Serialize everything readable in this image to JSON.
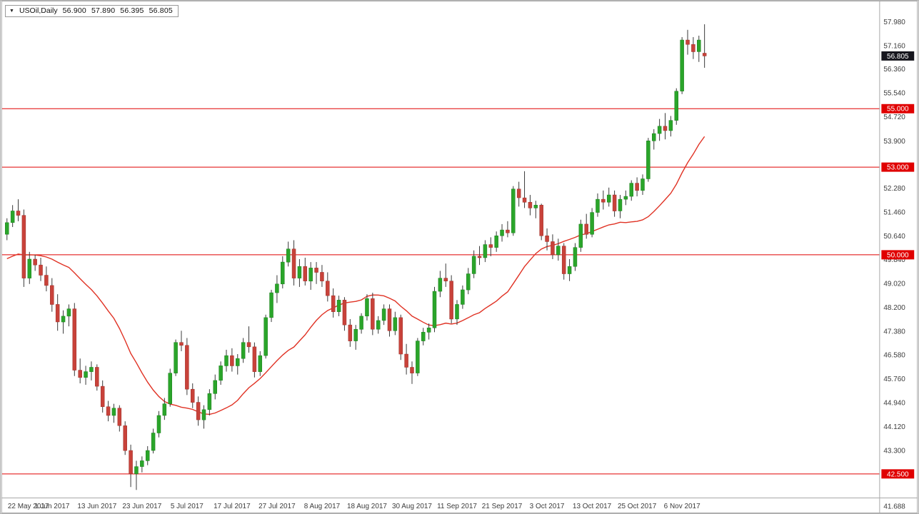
{
  "quote": {
    "dropdown_icon": "▼",
    "symbol_timeframe": "USOil,Daily",
    "open": "56.900",
    "high": "57.890",
    "low": "56.395",
    "close": "56.805"
  },
  "colors": {
    "up_body": "#2aa52a",
    "up_border": "#1d7f1d",
    "down_body": "#c8423a",
    "down_border": "#9e2f29",
    "wick": "#3a3a3a",
    "ma_line": "#e03224",
    "hline": "#e00000",
    "hline_label_bg": "#e00000",
    "hline_label_text": "#ffffff",
    "current_label_bg": "#16161e",
    "current_label_text": "#ffffff",
    "axis_text": "#3c3c3c",
    "frame": "#a8a8a8",
    "background": "#ffffff"
  },
  "chart_data": {
    "type": "candlestick",
    "title": "USOil, Daily",
    "symbol": "USOil",
    "timeframe": "Daily",
    "grid": "off",
    "legend": "none",
    "price_axis": {
      "scale_min": 41.688,
      "scale_max": 58.55,
      "ticks": [
        "57.980",
        "57.160",
        "56.360",
        "55.540",
        "54.720",
        "53.900",
        "52.280",
        "51.460",
        "50.640",
        "49.840",
        "49.020",
        "48.200",
        "47.380",
        "46.580",
        "45.760",
        "44.940",
        "44.120",
        "43.300",
        "41.688"
      ]
    },
    "time_axis": {
      "labels": [
        {
          "index": 0,
          "text": "22 May 2017"
        },
        {
          "index": 8,
          "text": "1 Jun 2017"
        },
        {
          "index": 16,
          "text": "13 Jun 2017"
        },
        {
          "index": 24,
          "text": "23 Jun 2017"
        },
        {
          "index": 32,
          "text": "5 Jul 2017"
        },
        {
          "index": 40,
          "text": "17 Jul 2017"
        },
        {
          "index": 48,
          "text": "27 Jul 2017"
        },
        {
          "index": 56,
          "text": "8 Aug 2017"
        },
        {
          "index": 64,
          "text": "18 Aug 2017"
        },
        {
          "index": 72,
          "text": "30 Aug 2017"
        },
        {
          "index": 80,
          "text": "11 Sep 2017"
        },
        {
          "index": 88,
          "text": "21 Sep 2017"
        },
        {
          "index": 96,
          "text": "3 Oct 2017"
        },
        {
          "index": 104,
          "text": "13 Oct 2017"
        },
        {
          "index": 112,
          "text": "25 Oct 2017"
        },
        {
          "index": 120,
          "text": "6 Nov 2017"
        }
      ]
    },
    "horizontal_levels": [
      {
        "value": 55.0,
        "text": "55.000"
      },
      {
        "value": 53.0,
        "text": "53.000"
      },
      {
        "value": 50.0,
        "text": "50.000"
      },
      {
        "value": 42.5,
        "text": "42.500"
      }
    ],
    "current_price": {
      "value": 56.805,
      "text": "56.805"
    },
    "ma": {
      "period": 20,
      "prehistory_pad": 49.8
    },
    "candles_format": [
      "open",
      "high",
      "low",
      "close"
    ],
    "candles": [
      [
        50.7,
        51.25,
        50.5,
        51.1
      ],
      [
        51.1,
        51.7,
        50.95,
        51.5
      ],
      [
        51.5,
        51.9,
        51.15,
        51.35
      ],
      [
        51.35,
        51.55,
        48.9,
        49.2
      ],
      [
        49.2,
        50.1,
        49.0,
        49.85
      ],
      [
        49.85,
        50.0,
        49.45,
        49.65
      ],
      [
        49.65,
        49.9,
        49.1,
        49.3
      ],
      [
        49.3,
        49.6,
        48.75,
        48.95
      ],
      [
        48.95,
        49.2,
        48.05,
        48.3
      ],
      [
        48.3,
        48.65,
        47.4,
        47.7
      ],
      [
        47.7,
        48.1,
        47.3,
        47.9
      ],
      [
        47.9,
        48.3,
        47.55,
        48.15
      ],
      [
        48.15,
        48.35,
        45.85,
        46.05
      ],
      [
        46.05,
        46.45,
        45.6,
        45.8
      ],
      [
        45.8,
        46.2,
        45.55,
        46.0
      ],
      [
        46.0,
        46.35,
        45.7,
        46.15
      ],
      [
        46.15,
        46.25,
        45.35,
        45.5
      ],
      [
        45.5,
        45.7,
        44.6,
        44.8
      ],
      [
        44.8,
        45.0,
        44.3,
        44.5
      ],
      [
        44.5,
        44.9,
        44.25,
        44.75
      ],
      [
        44.75,
        44.85,
        43.95,
        44.15
      ],
      [
        44.15,
        44.3,
        43.15,
        43.3
      ],
      [
        43.3,
        43.5,
        42.05,
        42.5
      ],
      [
        42.5,
        42.95,
        41.95,
        42.75
      ],
      [
        42.75,
        43.1,
        42.55,
        42.95
      ],
      [
        42.95,
        43.45,
        42.8,
        43.3
      ],
      [
        43.3,
        44.05,
        43.2,
        43.9
      ],
      [
        43.9,
        44.65,
        43.75,
        44.5
      ],
      [
        44.5,
        45.1,
        44.35,
        44.9
      ],
      [
        44.9,
        46.1,
        44.8,
        45.95
      ],
      [
        45.95,
        47.1,
        45.85,
        47.0
      ],
      [
        47.0,
        47.4,
        46.7,
        46.9
      ],
      [
        46.9,
        47.15,
        45.2,
        45.4
      ],
      [
        45.4,
        45.6,
        44.75,
        44.95
      ],
      [
        44.95,
        45.15,
        44.15,
        44.35
      ],
      [
        44.35,
        44.85,
        44.05,
        44.7
      ],
      [
        44.7,
        45.4,
        44.5,
        45.25
      ],
      [
        45.25,
        45.9,
        45.05,
        45.7
      ],
      [
        45.7,
        46.35,
        45.55,
        46.2
      ],
      [
        46.2,
        46.75,
        46.0,
        46.55
      ],
      [
        46.55,
        46.8,
        46.0,
        46.2
      ],
      [
        46.2,
        46.6,
        45.9,
        46.45
      ],
      [
        46.45,
        47.15,
        46.3,
        47.0
      ],
      [
        47.0,
        47.55,
        46.65,
        46.85
      ],
      [
        46.85,
        47.0,
        45.8,
        46.0
      ],
      [
        46.0,
        46.7,
        45.85,
        46.55
      ],
      [
        46.55,
        47.95,
        46.45,
        47.85
      ],
      [
        47.85,
        48.8,
        47.7,
        48.7
      ],
      [
        48.7,
        49.3,
        48.35,
        49.0
      ],
      [
        49.0,
        49.95,
        48.85,
        49.75
      ],
      [
        49.75,
        50.45,
        49.6,
        50.2
      ],
      [
        50.2,
        50.5,
        48.95,
        49.2
      ],
      [
        49.2,
        49.85,
        48.9,
        49.6
      ],
      [
        49.6,
        49.9,
        48.95,
        49.1
      ],
      [
        49.1,
        49.75,
        48.8,
        49.55
      ],
      [
        49.55,
        49.75,
        49.0,
        49.4
      ],
      [
        49.4,
        49.65,
        48.9,
        49.1
      ],
      [
        49.1,
        49.4,
        48.4,
        48.6
      ],
      [
        48.6,
        48.85,
        47.85,
        48.05
      ],
      [
        48.05,
        48.6,
        47.9,
        48.45
      ],
      [
        48.45,
        48.55,
        47.4,
        47.6
      ],
      [
        47.6,
        47.8,
        46.85,
        47.05
      ],
      [
        47.05,
        47.6,
        46.75,
        47.45
      ],
      [
        47.45,
        48.0,
        47.3,
        47.9
      ],
      [
        47.9,
        48.65,
        47.75,
        48.5
      ],
      [
        48.5,
        48.7,
        47.25,
        47.45
      ],
      [
        47.45,
        47.9,
        47.3,
        47.75
      ],
      [
        47.75,
        48.3,
        47.6,
        48.15
      ],
      [
        48.15,
        48.3,
        47.2,
        47.4
      ],
      [
        47.4,
        48.05,
        47.25,
        47.85
      ],
      [
        47.85,
        47.95,
        46.4,
        46.6
      ],
      [
        46.6,
        46.95,
        45.9,
        46.15
      ],
      [
        46.15,
        46.35,
        45.58,
        45.95
      ],
      [
        45.95,
        47.15,
        45.85,
        47.05
      ],
      [
        47.05,
        47.5,
        46.9,
        47.35
      ],
      [
        47.35,
        47.65,
        47.1,
        47.5
      ],
      [
        47.5,
        48.9,
        47.35,
        48.75
      ],
      [
        48.75,
        49.45,
        48.55,
        49.2
      ],
      [
        49.2,
        49.7,
        48.9,
        49.1
      ],
      [
        49.1,
        49.3,
        47.65,
        47.8
      ],
      [
        47.8,
        48.45,
        47.6,
        48.3
      ],
      [
        48.3,
        48.95,
        48.15,
        48.8
      ],
      [
        48.8,
        49.55,
        48.65,
        49.35
      ],
      [
        49.35,
        50.15,
        49.2,
        49.95
      ],
      [
        49.95,
        50.3,
        49.65,
        49.9
      ],
      [
        49.9,
        50.5,
        49.75,
        50.35
      ],
      [
        50.35,
        50.6,
        49.95,
        50.25
      ],
      [
        50.25,
        50.8,
        50.1,
        50.65
      ],
      [
        50.65,
        51.05,
        50.45,
        50.85
      ],
      [
        50.85,
        51.15,
        50.6,
        50.75
      ],
      [
        50.75,
        52.35,
        50.65,
        52.25
      ],
      [
        52.25,
        52.5,
        51.65,
        51.95
      ],
      [
        51.95,
        52.86,
        51.6,
        51.8
      ],
      [
        51.8,
        52.05,
        51.35,
        51.6
      ],
      [
        51.6,
        51.85,
        51.25,
        51.7
      ],
      [
        51.7,
        51.75,
        50.5,
        50.65
      ],
      [
        50.65,
        50.9,
        50.15,
        50.45
      ],
      [
        50.45,
        50.7,
        49.85,
        50.0
      ],
      [
        50.0,
        50.55,
        49.8,
        50.3
      ],
      [
        50.3,
        50.4,
        49.15,
        49.35
      ],
      [
        49.35,
        49.85,
        49.1,
        49.6
      ],
      [
        49.6,
        50.4,
        49.45,
        50.25
      ],
      [
        50.25,
        51.2,
        50.1,
        51.05
      ],
      [
        51.05,
        51.4,
        50.55,
        50.7
      ],
      [
        50.7,
        51.6,
        50.6,
        51.45
      ],
      [
        51.45,
        52.1,
        51.3,
        51.9
      ],
      [
        51.9,
        52.2,
        51.55,
        51.8
      ],
      [
        51.8,
        52.3,
        51.65,
        52.05
      ],
      [
        52.05,
        52.2,
        51.3,
        51.5
      ],
      [
        51.5,
        52.05,
        51.25,
        51.9
      ],
      [
        51.9,
        52.2,
        51.7,
        52.0
      ],
      [
        52.0,
        52.55,
        51.85,
        52.45
      ],
      [
        52.45,
        52.65,
        52.0,
        52.2
      ],
      [
        52.2,
        52.75,
        52.05,
        52.6
      ],
      [
        52.6,
        54.0,
        52.5,
        53.9
      ],
      [
        53.9,
        54.3,
        53.6,
        54.15
      ],
      [
        54.15,
        54.65,
        53.9,
        54.4
      ],
      [
        54.4,
        54.85,
        53.95,
        54.25
      ],
      [
        54.25,
        54.75,
        54.05,
        54.6
      ],
      [
        54.6,
        55.7,
        54.45,
        55.6
      ],
      [
        55.6,
        57.45,
        55.5,
        57.35
      ],
      [
        57.35,
        57.7,
        56.85,
        57.2
      ],
      [
        57.2,
        57.45,
        56.7,
        56.95
      ],
      [
        56.95,
        57.5,
        56.6,
        57.35
      ],
      [
        56.9,
        57.89,
        56.4,
        56.805
      ]
    ]
  }
}
